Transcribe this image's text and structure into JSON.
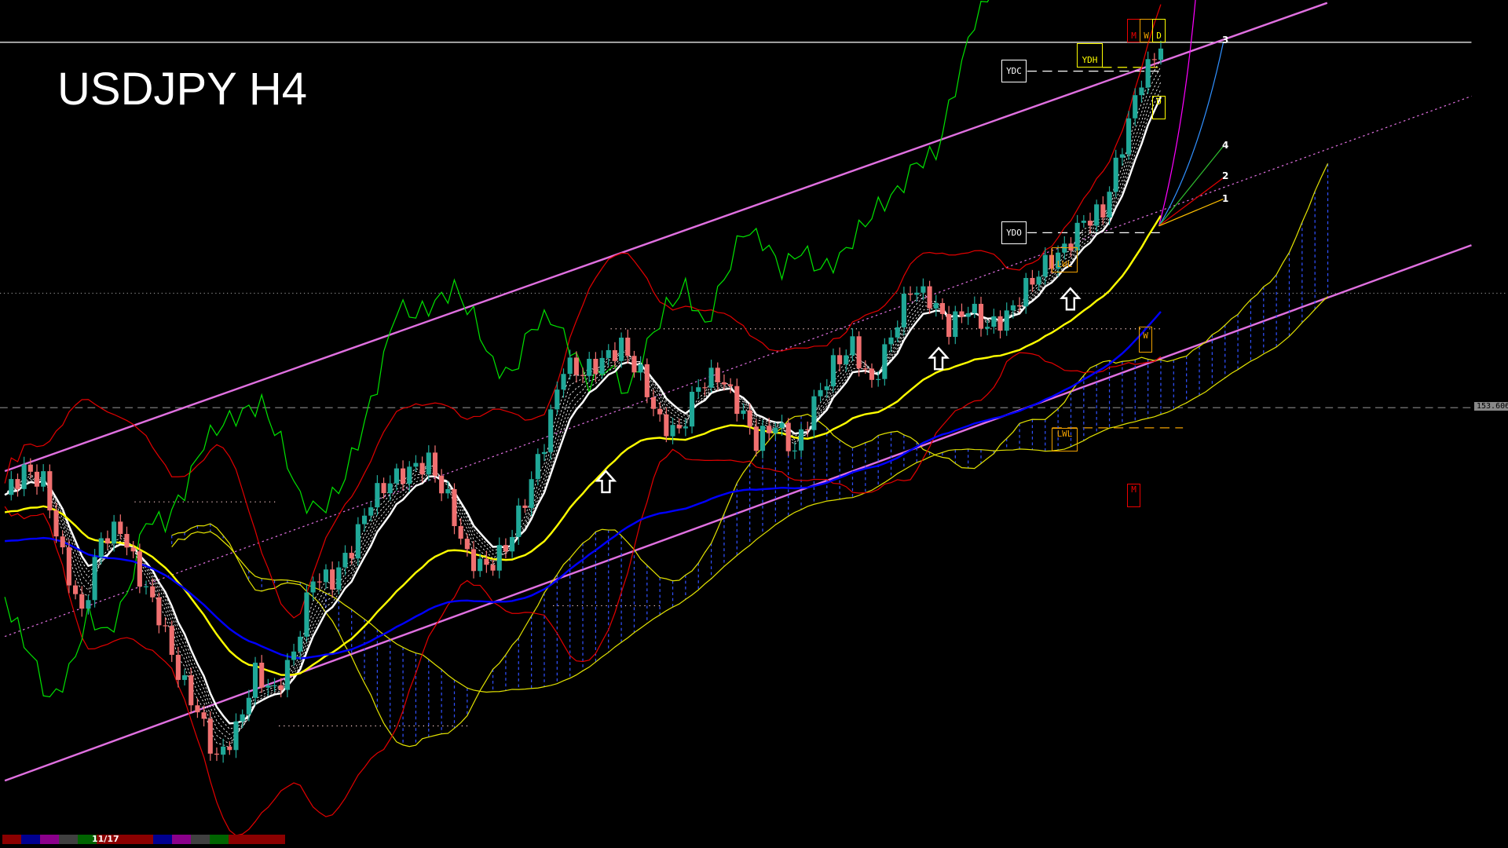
{
  "title": "USDJPY H4",
  "chart_data": {
    "type": "candlestick",
    "symbol": "USDJPY",
    "timeframe": "H4",
    "closes": [
      152.84,
      153.05,
      152.96,
      152.3,
      151.8,
      152.46,
      152.55,
      152.13,
      151.8,
      151.3,
      150.97,
      150.55,
      150.8,
      151.3,
      151.13,
      151.47,
      152.13,
      152.1,
      152.38,
      152.8,
      152.96,
      153.05,
      153.13,
      152.8,
      152.3,
      152.21,
      152.38,
      152.8,
      153.3,
      153.96,
      153.9,
      154.0,
      154.13,
      153.88,
      153.46,
      153.38,
      153.79,
      153.88,
      153.63,
      153.3,
      153.46,
      153.21,
      153.63,
      153.96,
      154.13,
      153.79,
      154.21,
      154.63,
      154.54,
      154.29,
      154.46,
      154.29,
      154.38,
      154.63,
      154.83,
      154.96,
      155.21,
      155.29,
      155.87,
      156.45,
      156.7
    ],
    "price_label": "153.606",
    "date_label": "11/17",
    "grid": false
  },
  "levels": {
    "ydc": "YDC",
    "ydo": "YDO",
    "ydh": "YDH",
    "m": "M",
    "w": "W",
    "d": "D",
    "d2": "D",
    "lwl_upper": "LWL",
    "lwl_lower": "LWL",
    "w2": "W",
    "m2": "M"
  },
  "fan_labels": [
    "3",
    "4",
    "2",
    "1"
  ],
  "colors": {
    "bull": "#20a898",
    "bear": "#f07070",
    "channel": "#e070e0",
    "ma_fast": "#ffffff",
    "ma_mid": "#ffff00",
    "ma_slow": "#0000ff",
    "band": "#e00000",
    "chikou": "#00e000",
    "cloud": "#3050ff"
  },
  "strip_colors": [
    "#8b0000",
    "#000090",
    "#8b008b",
    "#404040",
    "#006400",
    "#8b0000",
    "#8b0000"
  ]
}
